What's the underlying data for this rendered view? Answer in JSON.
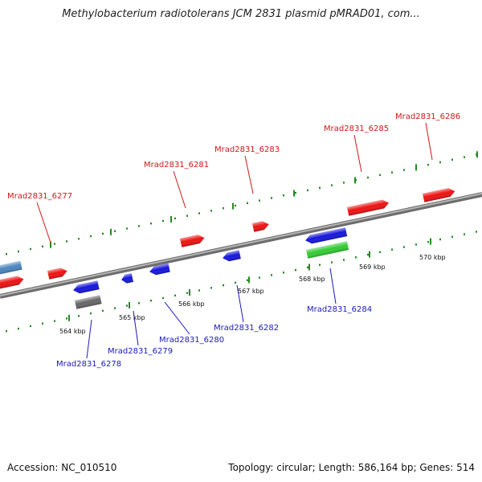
{
  "title": "Methylobacterium radiotolerans JCM 2831 plasmid pMRAD01, com...",
  "footer": {
    "accession": "Accession: NC_010510",
    "summary": "Topology: circular; Length: 586,164 bp; Genes: 514"
  },
  "colors": {
    "forward_gene": "#ee1111",
    "reverse_gene": "#1515dd",
    "rna_gene": "#33cc33",
    "pseudo_gene": "#666666",
    "other_gene": "#4a86c0",
    "tick": "#228b22",
    "backbone": "#888888"
  },
  "genes": [
    {
      "id": "Mrad2831_6277",
      "strand": "forward",
      "label": true
    },
    {
      "id": "Mrad2831_6278",
      "strand": "reverse",
      "label": true
    },
    {
      "id": "Mrad2831_6279",
      "strand": "reverse",
      "label": true
    },
    {
      "id": "Mrad2831_6280",
      "strand": "reverse",
      "label": true
    },
    {
      "id": "Mrad2831_6281",
      "strand": "forward",
      "label": true
    },
    {
      "id": "Mrad2831_6282",
      "strand": "reverse",
      "label": true
    },
    {
      "id": "Mrad2831_6283",
      "strand": "forward",
      "label": true
    },
    {
      "id": "Mrad2831_6284",
      "strand": "reverse",
      "label": true
    },
    {
      "id": "Mrad2831_6285",
      "strand": "forward",
      "label": true
    },
    {
      "id": "Mrad2831_6286",
      "strand": "forward",
      "label": true
    }
  ],
  "kbp_labels": [
    "564 kbp",
    "565 kbp",
    "566 kbp",
    "567 kbp",
    "568 kbp",
    "569 kbp",
    "570 kbp"
  ]
}
